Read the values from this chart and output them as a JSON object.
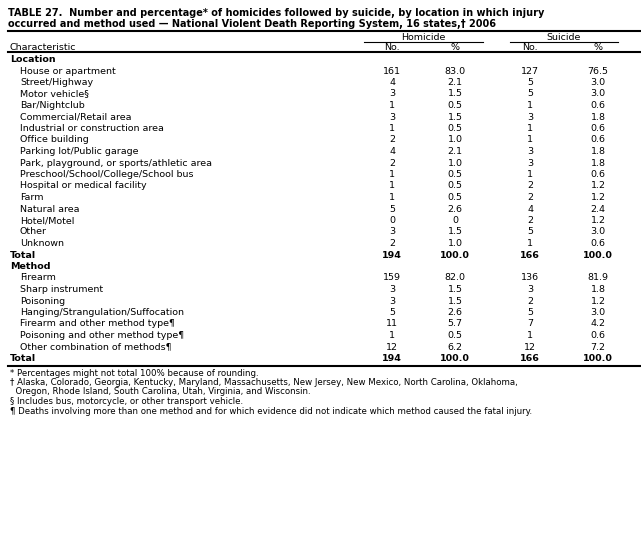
{
  "title_line1": "TABLE 27.  Number and percentage* of homicides followed by suicide, by location in which injury",
  "title_line2": "occurred and method used — National Violent Death Reporting System, 16 states,† 2006",
  "sections": [
    {
      "section_header": "Location",
      "rows": [
        {
          "label": "House or apartment",
          "h_no": "161",
          "h_pct": "83.0",
          "s_no": "127",
          "s_pct": "76.5"
        },
        {
          "label": "Street/Highway",
          "h_no": "4",
          "h_pct": "2.1",
          "s_no": "5",
          "s_pct": "3.0"
        },
        {
          "label": "Motor vehicle§",
          "h_no": "3",
          "h_pct": "1.5",
          "s_no": "5",
          "s_pct": "3.0"
        },
        {
          "label": "Bar/Nightclub",
          "h_no": "1",
          "h_pct": "0.5",
          "s_no": "1",
          "s_pct": "0.6"
        },
        {
          "label": "Commercial/Retail area",
          "h_no": "3",
          "h_pct": "1.5",
          "s_no": "3",
          "s_pct": "1.8"
        },
        {
          "label": "Industrial or construction area",
          "h_no": "1",
          "h_pct": "0.5",
          "s_no": "1",
          "s_pct": "0.6"
        },
        {
          "label": "Office building",
          "h_no": "2",
          "h_pct": "1.0",
          "s_no": "1",
          "s_pct": "0.6"
        },
        {
          "label": "Parking lot/Public garage",
          "h_no": "4",
          "h_pct": "2.1",
          "s_no": "3",
          "s_pct": "1.8"
        },
        {
          "label": "Park, playground, or sports/athletic area",
          "h_no": "2",
          "h_pct": "1.0",
          "s_no": "3",
          "s_pct": "1.8"
        },
        {
          "label": "Preschool/School/College/School bus",
          "h_no": "1",
          "h_pct": "0.5",
          "s_no": "1",
          "s_pct": "0.6"
        },
        {
          "label": "Hospital or medical facility",
          "h_no": "1",
          "h_pct": "0.5",
          "s_no": "2",
          "s_pct": "1.2"
        },
        {
          "label": "Farm",
          "h_no": "1",
          "h_pct": "0.5",
          "s_no": "2",
          "s_pct": "1.2"
        },
        {
          "label": "Natural area",
          "h_no": "5",
          "h_pct": "2.6",
          "s_no": "4",
          "s_pct": "2.4"
        },
        {
          "label": "Hotel/Motel",
          "h_no": "0",
          "h_pct": "0",
          "s_no": "2",
          "s_pct": "1.2"
        },
        {
          "label": "Other",
          "h_no": "3",
          "h_pct": "1.5",
          "s_no": "5",
          "s_pct": "3.0"
        },
        {
          "label": "Unknown",
          "h_no": "2",
          "h_pct": "1.0",
          "s_no": "1",
          "s_pct": "0.6"
        }
      ],
      "total": {
        "label": "Total",
        "h_no": "194",
        "h_pct": "100.0",
        "s_no": "166",
        "s_pct": "100.0"
      }
    },
    {
      "section_header": "Method",
      "rows": [
        {
          "label": "Firearm",
          "h_no": "159",
          "h_pct": "82.0",
          "s_no": "136",
          "s_pct": "81.9"
        },
        {
          "label": "Sharp instrument",
          "h_no": "3",
          "h_pct": "1.5",
          "s_no": "3",
          "s_pct": "1.8"
        },
        {
          "label": "Poisoning",
          "h_no": "3",
          "h_pct": "1.5",
          "s_no": "2",
          "s_pct": "1.2"
        },
        {
          "label": "Hanging/Strangulation/Suffocation",
          "h_no": "5",
          "h_pct": "2.6",
          "s_no": "5",
          "s_pct": "3.0"
        },
        {
          "label": "Firearm and other method type¶",
          "h_no": "11",
          "h_pct": "5.7",
          "s_no": "7",
          "s_pct": "4.2"
        },
        {
          "label": "Poisoning and other method type¶",
          "h_no": "1",
          "h_pct": "0.5",
          "s_no": "1",
          "s_pct": "0.6"
        },
        {
          "label": "Other combination of methods¶",
          "h_no": "12",
          "h_pct": "6.2",
          "s_no": "12",
          "s_pct": "7.2"
        }
      ],
      "total": {
        "label": "Total",
        "h_no": "194",
        "h_pct": "100.0",
        "s_no": "166",
        "s_pct": "100.0"
      }
    }
  ],
  "footnotes": [
    "* Percentages might not total 100% because of rounding.",
    "† Alaska, Colorado, Georgia, Kentucky, Maryland, Massachusetts, New Jersey, New Mexico, North Carolina, Oklahoma,",
    "  Oregon, Rhode Island, South Carolina, Utah, Virginia, and Wisconsin.",
    "§ Includes bus, motorcycle, or other transport vehicle.",
    "¶ Deaths involving more than one method and for which evidence did not indicate which method caused the fatal injury."
  ],
  "bg_color": "#ffffff",
  "text_color": "#000000"
}
